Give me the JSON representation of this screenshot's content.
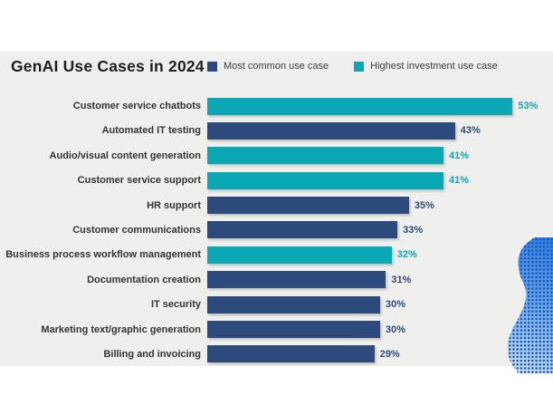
{
  "page": {
    "background": "#ffffff",
    "panel_background": "#efefed"
  },
  "header": {
    "title": "GenAI Use Cases in 2024"
  },
  "chart_data": {
    "type": "bar",
    "orientation": "horizontal",
    "title": "GenAI Use Cases in 2024",
    "value_suffix": "%",
    "xlim": [
      0,
      60
    ],
    "grid": false,
    "legend_position": "top",
    "series": [
      {
        "id": "most_common",
        "name": "Most common use case",
        "color": "#2d4a7c"
      },
      {
        "id": "highest_investment",
        "name": "Highest investment use case",
        "color": "#0aa8b4"
      }
    ],
    "rows": [
      {
        "label": "Customer service chatbots",
        "value": 53,
        "series": "highest_investment"
      },
      {
        "label": "Automated IT testing",
        "value": 43,
        "series": "most_common"
      },
      {
        "label": "Audio/visual content generation",
        "value": 41,
        "series": "highest_investment"
      },
      {
        "label": "Customer service support",
        "value": 41,
        "series": "highest_investment"
      },
      {
        "label": "HR support",
        "value": 35,
        "series": "most_common"
      },
      {
        "label": "Customer communications",
        "value": 33,
        "series": "most_common"
      },
      {
        "label": "Business process workflow management",
        "value": 32,
        "series": "highest_investment"
      },
      {
        "label": "Documentation creation",
        "value": 31,
        "series": "most_common"
      },
      {
        "label": "IT security",
        "value": 30,
        "series": "most_common"
      },
      {
        "label": "Marketing text/graphic generation",
        "value": 30,
        "series": "most_common"
      },
      {
        "label": "Billing and invoicing",
        "value": 29,
        "series": "most_common"
      }
    ]
  },
  "decoration": {
    "name": "dotted-head-graphic",
    "dot_color": "#1a55b8",
    "gradient": [
      "#2f7ce2",
      "#d8e9fb"
    ]
  }
}
